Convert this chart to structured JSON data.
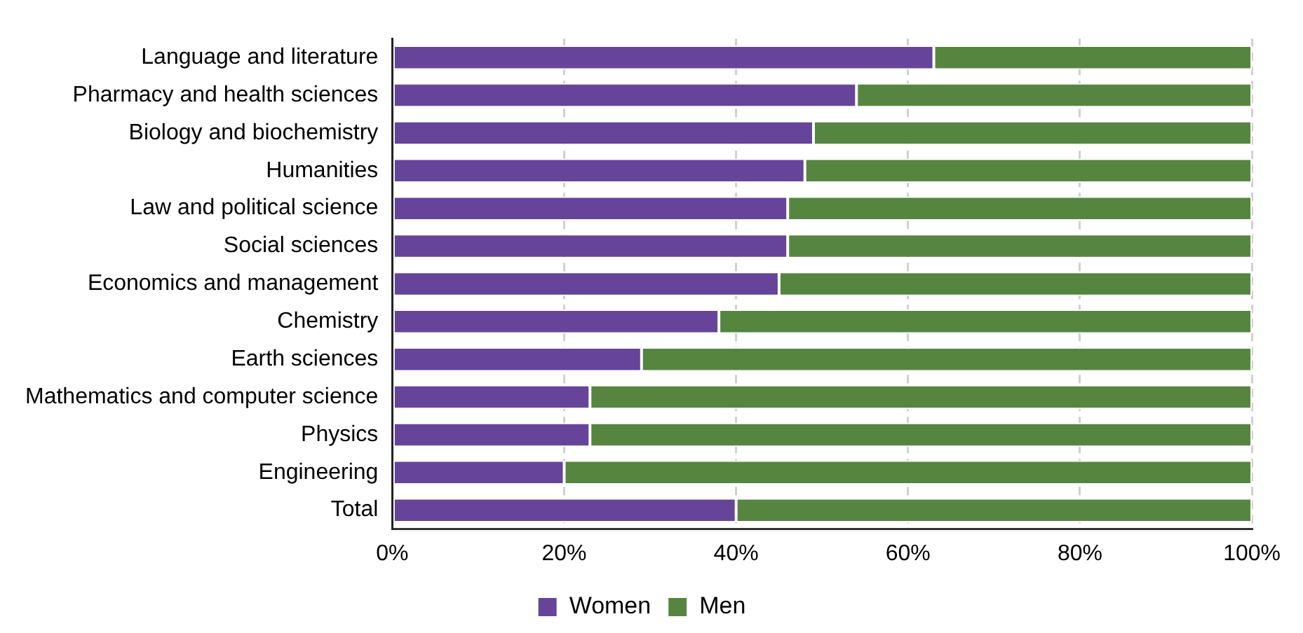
{
  "chart_data": {
    "type": "bar",
    "orientation": "horizontal",
    "stacked": true,
    "categories": [
      "Language and literature",
      "Pharmacy and health sciences",
      "Biology and biochemistry",
      "Humanities",
      "Law and political science",
      "Social sciences",
      "Economics and management",
      "Chemistry",
      "Earth sciences",
      "Mathematics and computer science",
      "Physics",
      "Engineering",
      "Total"
    ],
    "series": [
      {
        "name": "Women",
        "color": "#66449a",
        "values": [
          63,
          54,
          49,
          48,
          46,
          46,
          45,
          38,
          29,
          23,
          23,
          20,
          40
        ]
      },
      {
        "name": "Men",
        "color": "#568540",
        "values": [
          37,
          46,
          51,
          52,
          54,
          54,
          55,
          62,
          71,
          77,
          77,
          80,
          60
        ]
      }
    ],
    "xlim": [
      0,
      100
    ],
    "xticks": [
      {
        "value": 0,
        "label": "0%"
      },
      {
        "value": 20,
        "label": "20%"
      },
      {
        "value": 40,
        "label": "40%"
      },
      {
        "value": 60,
        "label": "60%"
      },
      {
        "value": 80,
        "label": "80%"
      },
      {
        "value": 100,
        "label": "100%"
      }
    ],
    "grid": "x",
    "legend": "bottom"
  }
}
